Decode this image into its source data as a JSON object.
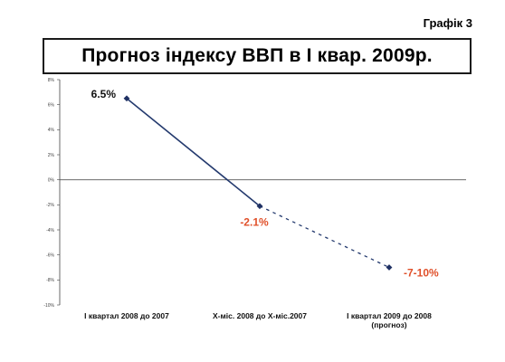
{
  "graph_number": "Графік 3",
  "chart_data": {
    "type": "line",
    "title": "Прогноз індексу ВВП в І квар. 2009р.",
    "categories": [
      "І квартал 2008 до 2007",
      "Х-міс. 2008 до Х-міс.2007",
      "І квартал 2009 до 2008 (прогноз)"
    ],
    "category_lines": [
      [
        "І квартал 2008 до 2007"
      ],
      [
        "Х-міс. 2008 до Х-міс.2007"
      ],
      [
        "І квартал 2009 до 2008",
        "(прогноз)"
      ]
    ],
    "values": [
      6.5,
      -2.1,
      -7
    ],
    "data_labels": [
      "6.5%",
      "-2.1%",
      "-7-10%"
    ],
    "segments": [
      "solid",
      "dashed"
    ],
    "ylim": [
      -10,
      8
    ],
    "yticks": [
      8,
      6,
      4,
      2,
      0,
      -2,
      -4,
      -6,
      -8,
      -10
    ],
    "ytick_labels": [
      "8%",
      "6%",
      "4%",
      "2%",
      "0%",
      "-2%",
      "-4%",
      "-6%",
      "-8%",
      "-10%"
    ],
    "grid": false,
    "colors": {
      "line": "#243a6e",
      "marker": "#1f3163",
      "positive_label": "#111111",
      "negative_label": "#e0502a",
      "axis": "#444444",
      "zero_line": "#555555"
    }
  }
}
